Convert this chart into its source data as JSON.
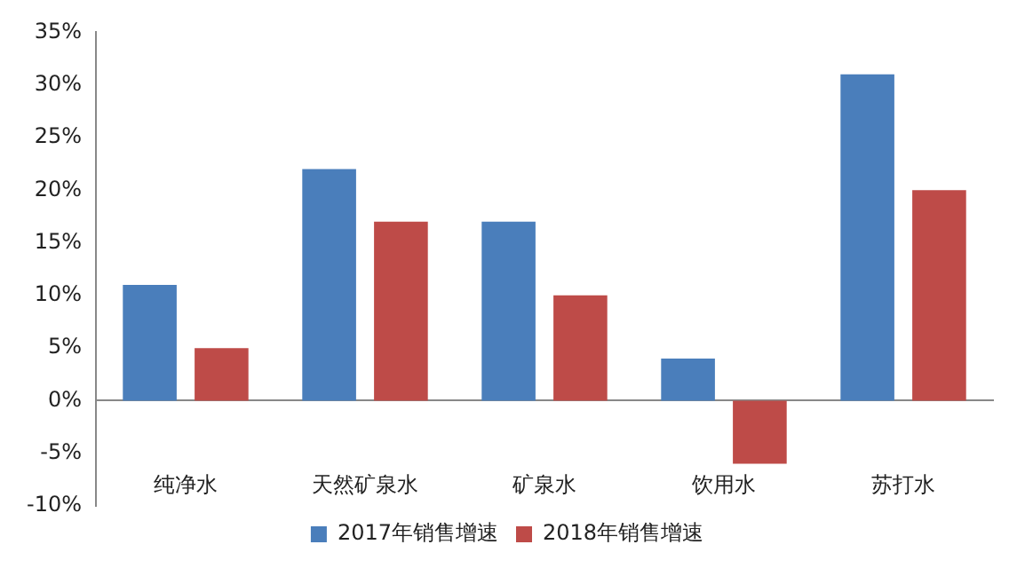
{
  "chart_data": {
    "type": "bar",
    "categories": [
      "纯净水",
      "天然矿泉水",
      "矿泉水",
      "饮用水",
      "苏打水"
    ],
    "series": [
      {
        "name": "2017年销售增速",
        "color": "#4a7ebb",
        "values": [
          11,
          22,
          17,
          4,
          31
        ]
      },
      {
        "name": "2018年销售增速",
        "color": "#be4b48",
        "values": [
          5,
          17,
          10,
          -6,
          20
        ]
      }
    ],
    "ylim": [
      -10,
      35
    ],
    "yticks": [
      {
        "value": -10,
        "label": "-10%"
      },
      {
        "value": -5,
        "label": "-5%"
      },
      {
        "value": 0,
        "label": "0%"
      },
      {
        "value": 5,
        "label": "5%"
      },
      {
        "value": 10,
        "label": "10%"
      },
      {
        "value": 15,
        "label": "15%"
      },
      {
        "value": 20,
        "label": "20%"
      },
      {
        "value": 25,
        "label": "25%"
      },
      {
        "value": 30,
        "label": "30%"
      },
      {
        "value": 35,
        "label": "35%"
      }
    ],
    "legend": "bottom"
  }
}
